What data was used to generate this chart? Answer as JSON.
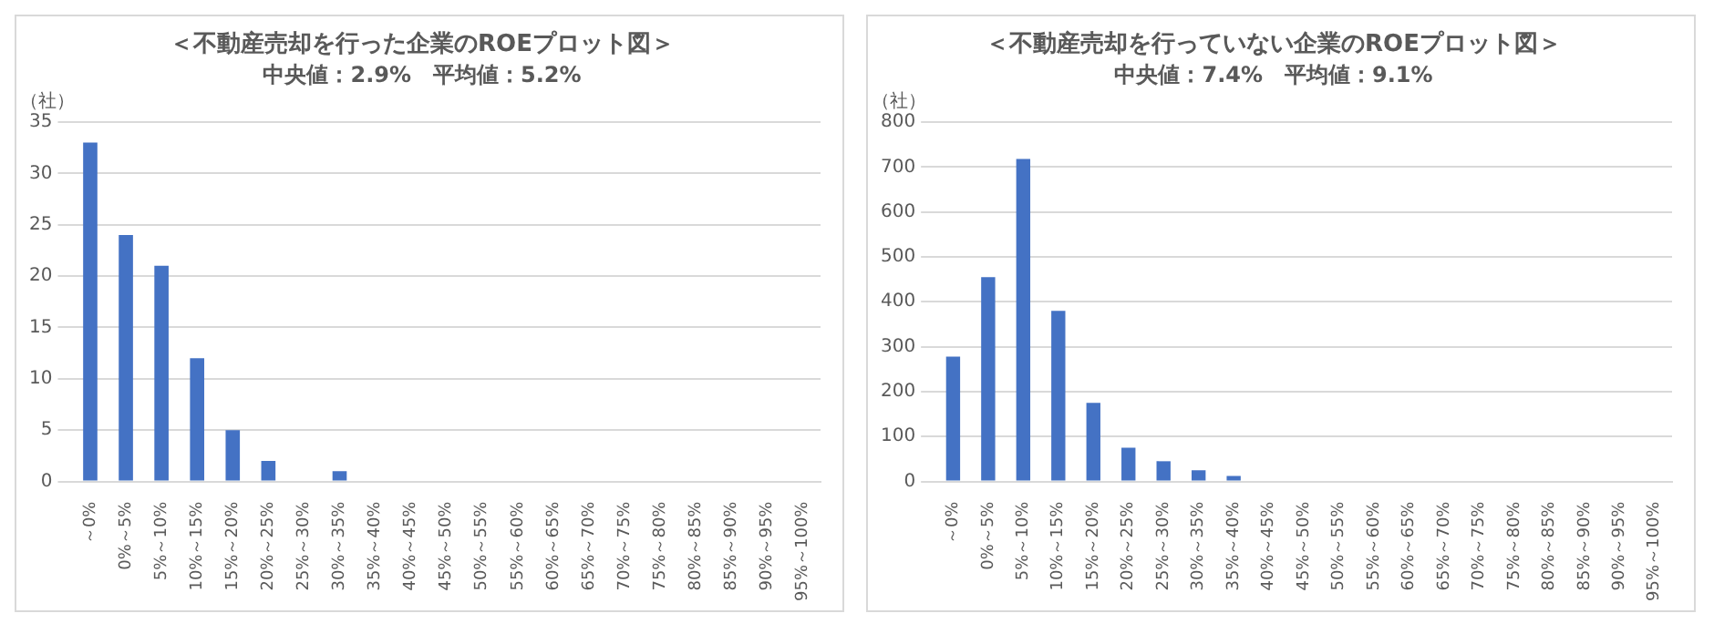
{
  "chart_data": [
    {
      "type": "bar",
      "title": "＜不動産売却を行った企業のROEプロット図＞",
      "subtitle": "中央値：2.9%　平均値：5.2%",
      "ylabel": "（社）",
      "categories": [
        "～0%",
        "0%～5%",
        "5%～10%",
        "10%～15%",
        "15%～20%",
        "20%～25%",
        "25%～30%",
        "30%～35%",
        "35%～40%",
        "40%～45%",
        "45%～50%",
        "50%～55%",
        "55%～60%",
        "60%～65%",
        "65%～70%",
        "70%～75%",
        "75%～80%",
        "80%～85%",
        "85%～90%",
        "90%～95%",
        "95%～100%"
      ],
      "values": [
        33,
        24,
        21,
        12,
        5,
        2,
        0,
        1,
        0,
        0,
        0,
        0,
        0,
        0,
        0,
        0,
        0,
        0,
        0,
        0,
        0
      ],
      "color": "#4472c4",
      "ylim": [
        0,
        35
      ],
      "yticks": [
        0,
        5,
        10,
        15,
        20,
        25,
        30,
        35
      ],
      "grid": "y",
      "legend": false
    },
    {
      "type": "bar",
      "title": "＜不動産売却を行っていない企業のROEプロット図＞",
      "subtitle": "中央値：7.4%　平均値：9.1%",
      "ylabel": "（社）",
      "categories": [
        "～0%",
        "0%～5%",
        "5%～10%",
        "10%～15%",
        "15%～20%",
        "20%～25%",
        "25%～30%",
        "30%～35%",
        "35%～40%",
        "40%～45%",
        "45%～50%",
        "50%～55%",
        "55%～60%",
        "60%～65%",
        "65%～70%",
        "70%～75%",
        "75%～80%",
        "80%～85%",
        "85%～90%",
        "90%～95%",
        "95%～100%"
      ],
      "values": [
        278,
        455,
        718,
        380,
        175,
        75,
        45,
        25,
        12,
        0,
        0,
        0,
        0,
        0,
        0,
        0,
        0,
        0,
        0,
        0,
        0
      ],
      "color": "#4472c4",
      "ylim": [
        0,
        800
      ],
      "yticks": [
        0,
        100,
        200,
        300,
        400,
        500,
        600,
        700,
        800
      ],
      "grid": "y",
      "legend": false
    }
  ]
}
